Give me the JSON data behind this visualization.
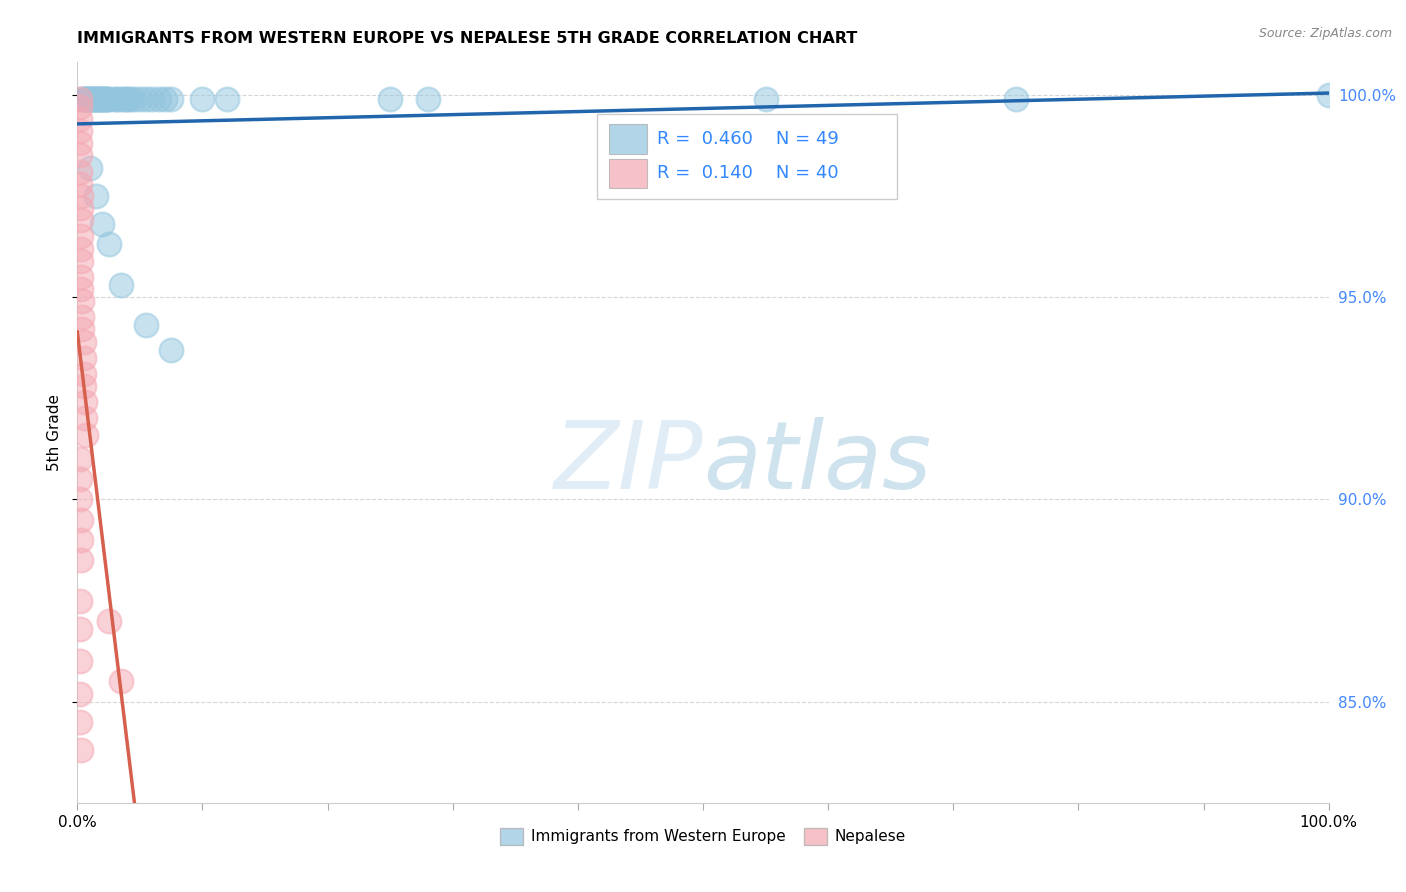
{
  "title": "IMMIGRANTS FROM WESTERN EUROPE VS NEPALESE 5TH GRADE CORRELATION CHART",
  "source": "Source: ZipAtlas.com",
  "ylabel": "5th Grade",
  "ylabel_right_labels": [
    "100.0%",
    "95.0%",
    "90.0%",
    "85.0%"
  ],
  "ylabel_right_values": [
    1.0,
    0.95,
    0.9,
    0.85
  ],
  "legend_blue_label": "Immigrants from Western Europe",
  "legend_pink_label": "Nepalese",
  "R_blue": 0.46,
  "N_blue": 49,
  "R_pink": 0.14,
  "N_pink": 40,
  "blue_color": "#92c5de",
  "pink_color": "#f4a7b2",
  "blue_line_color": "#2166ac",
  "pink_line_color": "#d6604d",
  "blue_scatter_x": [
    0.004,
    0.005,
    0.006,
    0.007,
    0.008,
    0.009,
    0.01,
    0.011,
    0.012,
    0.013,
    0.014,
    0.015,
    0.016,
    0.017,
    0.018,
    0.019,
    0.02,
    0.021,
    0.022,
    0.023,
    0.024,
    0.025,
    0.03,
    0.032,
    0.035,
    0.038,
    0.04,
    0.042,
    0.045,
    0.05,
    0.055,
    0.06,
    0.065,
    0.07,
    0.075,
    0.01,
    0.015,
    0.02,
    0.025,
    0.035,
    0.055,
    0.075,
    0.25,
    0.28,
    0.55,
    0.75,
    1.0,
    0.1,
    0.12
  ],
  "blue_scatter_y": [
    0.999,
    0.999,
    0.999,
    0.999,
    0.999,
    0.999,
    0.999,
    0.999,
    0.999,
    0.999,
    0.999,
    0.999,
    0.999,
    0.999,
    0.999,
    0.999,
    0.999,
    0.999,
    0.999,
    0.999,
    0.999,
    0.999,
    0.999,
    0.999,
    0.999,
    0.999,
    0.999,
    0.999,
    0.999,
    0.999,
    0.999,
    0.999,
    0.999,
    0.999,
    0.999,
    0.982,
    0.975,
    0.968,
    0.963,
    0.953,
    0.943,
    0.937,
    0.999,
    0.999,
    0.999,
    0.999,
    1.0,
    0.999,
    0.999
  ],
  "pink_scatter_x": [
    0.002,
    0.002,
    0.002,
    0.002,
    0.002,
    0.002,
    0.002,
    0.002,
    0.003,
    0.003,
    0.003,
    0.003,
    0.003,
    0.003,
    0.003,
    0.003,
    0.004,
    0.004,
    0.004,
    0.005,
    0.005,
    0.005,
    0.005,
    0.006,
    0.006,
    0.007,
    0.002,
    0.002,
    0.002,
    0.003,
    0.003,
    0.003,
    0.002,
    0.002,
    0.002,
    0.002,
    0.002,
    0.003,
    0.025,
    0.035
  ],
  "pink_scatter_y": [
    0.999,
    0.997,
    0.994,
    0.991,
    0.988,
    0.985,
    0.981,
    0.978,
    0.975,
    0.972,
    0.969,
    0.965,
    0.962,
    0.959,
    0.955,
    0.952,
    0.949,
    0.945,
    0.942,
    0.939,
    0.935,
    0.931,
    0.928,
    0.924,
    0.92,
    0.916,
    0.91,
    0.905,
    0.9,
    0.895,
    0.89,
    0.885,
    0.875,
    0.868,
    0.86,
    0.852,
    0.845,
    0.838,
    0.87,
    0.855
  ],
  "xlim": [
    0.0,
    1.0
  ],
  "ylim": [
    0.825,
    1.008
  ],
  "background_color": "#ffffff",
  "grid_color": "#cccccc"
}
